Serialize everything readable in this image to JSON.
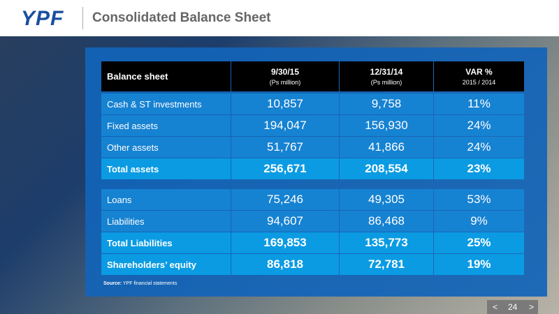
{
  "header": {
    "logo": "YPF",
    "title": "Consolidated Balance Sheet"
  },
  "table": {
    "columns": [
      {
        "label": "Balance sheet"
      },
      {
        "label": "9/30/15",
        "sublabel": "(Ps million)"
      },
      {
        "label": "12/31/14",
        "sublabel": "(Ps million)"
      },
      {
        "label": "VAR %",
        "sublabel": "2015 / 2014"
      }
    ],
    "groups": [
      [
        {
          "cells": [
            "Cash & ST investments",
            "10,857",
            "9,758",
            "11%"
          ]
        },
        {
          "cells": [
            "Fixed assets",
            "194,047",
            "156,930",
            "24%"
          ]
        },
        {
          "cells": [
            "Other assets",
            "51,767",
            "41,866",
            "24%"
          ]
        },
        {
          "cells": [
            "Total assets",
            "256,671",
            "208,554",
            "23%"
          ],
          "emphasis": true
        }
      ],
      [
        {
          "cells": [
            "Loans",
            "75,246",
            "49,305",
            "53%"
          ]
        },
        {
          "cells": [
            "Liabilities",
            "94,607",
            "86,468",
            "9%"
          ]
        },
        {
          "cells": [
            "Total Liabilities",
            "169,853",
            "135,773",
            "25%"
          ],
          "emphasis": true
        },
        {
          "cells": [
            "Shareholders’ equity",
            "86,818",
            "72,781",
            "19%"
          ],
          "emphasis": true
        }
      ]
    ]
  },
  "source": {
    "label": "Source:",
    "text": "YPF financial statements"
  },
  "page_number": "24"
}
